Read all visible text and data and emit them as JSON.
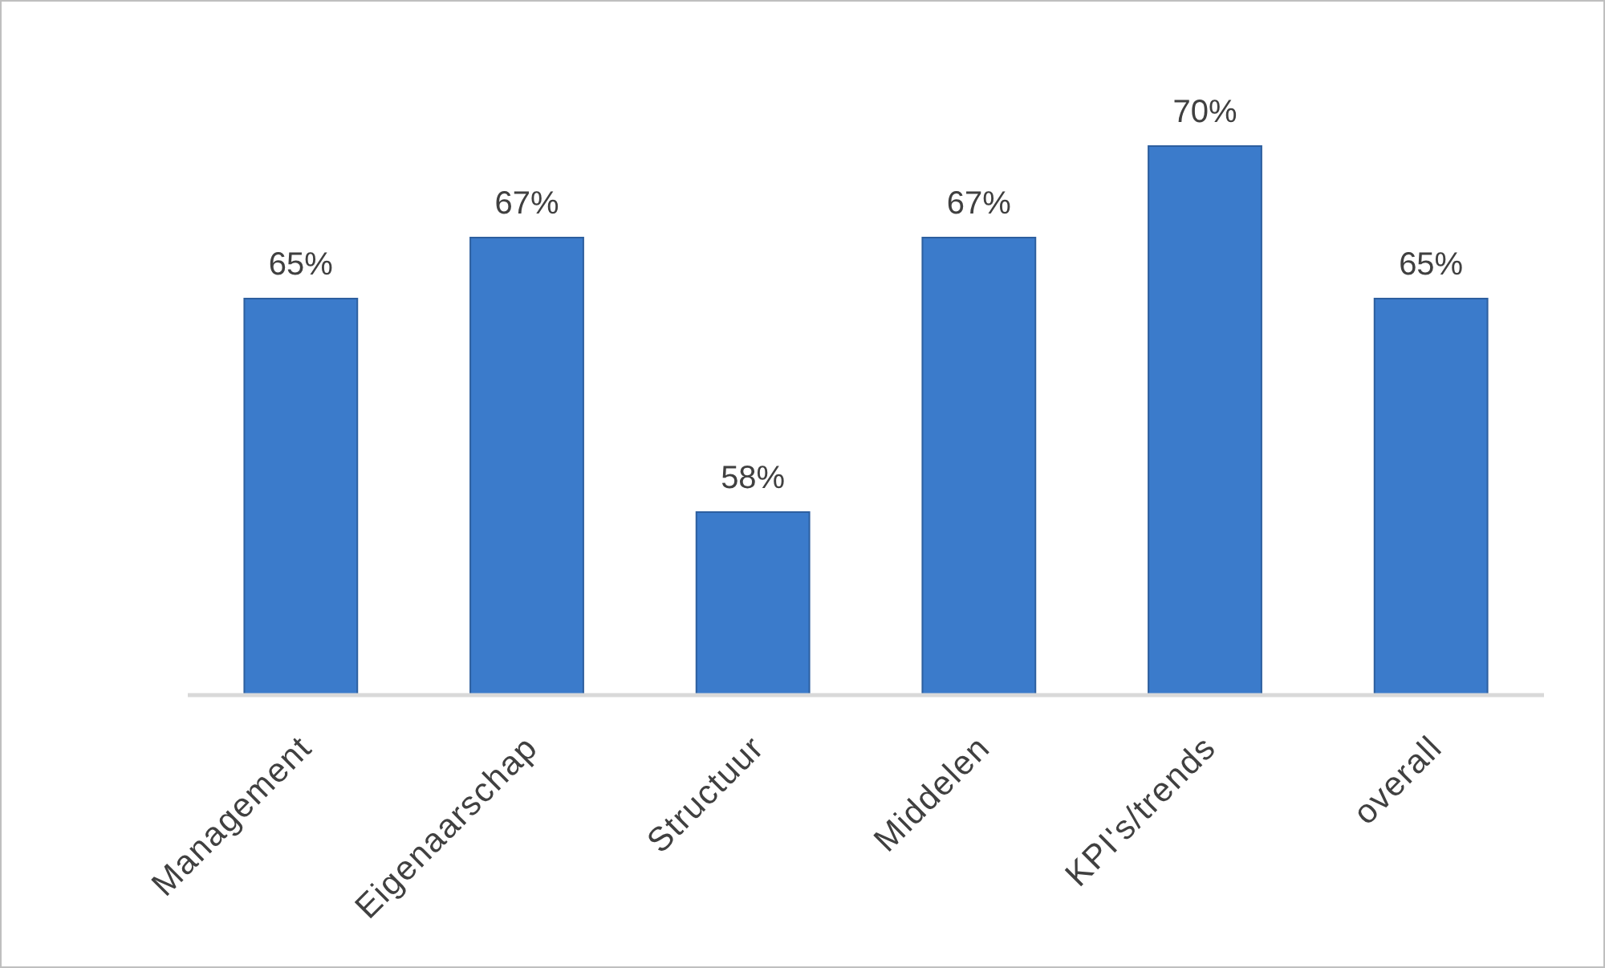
{
  "chart_data": {
    "type": "bar",
    "categories": [
      "Management",
      "Eigenaarschap",
      "Structuur",
      "Middelen",
      "KPI's/trends",
      "overall"
    ],
    "values": [
      65,
      67,
      58,
      67,
      70,
      65
    ],
    "value_labels": [
      "65%",
      "67%",
      "58%",
      "67%",
      "70%",
      "65%"
    ],
    "color": "#3b7bcb",
    "ylim": [
      52,
      70
    ],
    "tick_labels": "x"
  }
}
